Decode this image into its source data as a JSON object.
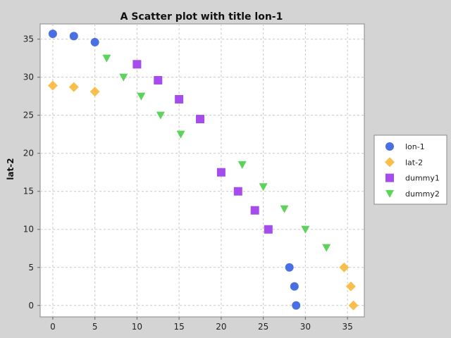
{
  "chart_data": {
    "type": "scatter",
    "title": "A Scatter plot with title lon-1",
    "xlabel": "",
    "ylabel": "lat-2",
    "xlim": [
      -1.5,
      37.0
    ],
    "ylim": [
      -1.5,
      37.0
    ],
    "xticks": [
      "0",
      "5",
      "10",
      "15",
      "20",
      "25",
      "30",
      "35"
    ],
    "yticks": [
      "0",
      "5",
      "10",
      "15",
      "20",
      "25",
      "30",
      "35"
    ],
    "grid": true,
    "legend_position": "right",
    "series": [
      {
        "name": "lon-1",
        "marker": "circle",
        "color": "#4a6fe3",
        "points": [
          [
            0,
            35.7
          ],
          [
            2.5,
            35.4
          ],
          [
            5,
            34.6
          ],
          [
            28.1,
            5
          ],
          [
            28.7,
            2.5
          ],
          [
            28.9,
            0
          ]
        ]
      },
      {
        "name": "lat-2",
        "marker": "diamond",
        "color": "#f9bf4c",
        "points": [
          [
            0,
            28.9
          ],
          [
            2.5,
            28.7
          ],
          [
            5,
            28.1
          ],
          [
            34.6,
            5
          ],
          [
            35.4,
            2.5
          ],
          [
            35.7,
            0
          ]
        ]
      },
      {
        "name": "dummy1",
        "marker": "square",
        "color": "#a64ced",
        "points": [
          [
            10,
            31.7
          ],
          [
            12.5,
            29.6
          ],
          [
            15,
            27.1
          ],
          [
            17.5,
            24.5
          ],
          [
            20,
            17.5
          ],
          [
            22,
            15
          ],
          [
            24,
            12.5
          ],
          [
            25.6,
            10
          ]
        ]
      },
      {
        "name": "dummy2",
        "marker": "triangle-down",
        "color": "#5dd35b",
        "points": [
          [
            6.4,
            32.5
          ],
          [
            8.4,
            30
          ],
          [
            10.5,
            27.5
          ],
          [
            12.8,
            25
          ],
          [
            15.2,
            22.5
          ],
          [
            22.5,
            18.5
          ],
          [
            25,
            15.6
          ],
          [
            27.5,
            12.7
          ],
          [
            30,
            10
          ],
          [
            32.5,
            7.6
          ]
        ]
      }
    ]
  }
}
